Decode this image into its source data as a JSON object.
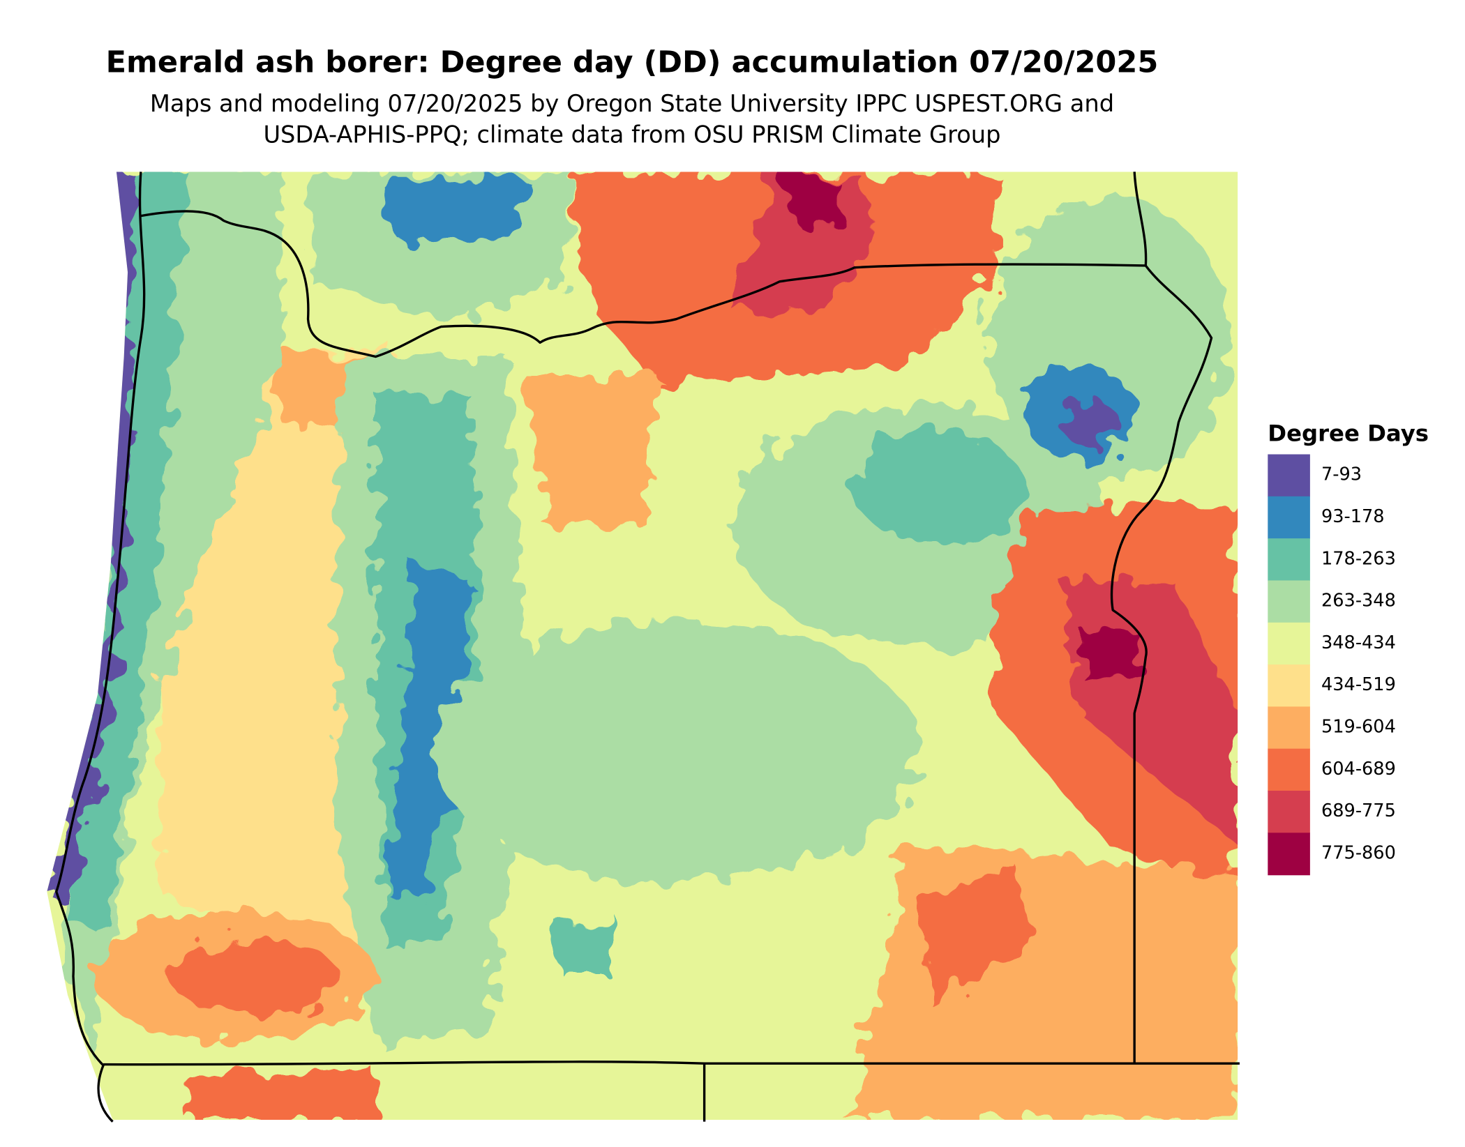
{
  "title": "Emerald ash borer: Degree day (DD) accumulation 07/20/2025",
  "subtitle": [
    "Maps and modeling 07/20/2025 by Oregon State University IPPC USPEST.ORG and",
    "USDA-APHIS-PPQ; climate data from OSU PRISM Climate Group"
  ],
  "legend": {
    "title": "Degree Days",
    "items": [
      {
        "label": "7-93",
        "color": "#5e4fa2"
      },
      {
        "label": "93-178",
        "color": "#3288bd"
      },
      {
        "label": "178-263",
        "color": "#66c2a5"
      },
      {
        "label": "263-348",
        "color": "#abdda4"
      },
      {
        "label": "348-434",
        "color": "#e6f598"
      },
      {
        "label": "434-519",
        "color": "#fee08b"
      },
      {
        "label": "519-604",
        "color": "#fdae61"
      },
      {
        "label": "604-689",
        "color": "#f46d43"
      },
      {
        "label": "689-775",
        "color": "#d53e4f"
      },
      {
        "label": "775-860",
        "color": "#9e0142"
      }
    ]
  }
}
